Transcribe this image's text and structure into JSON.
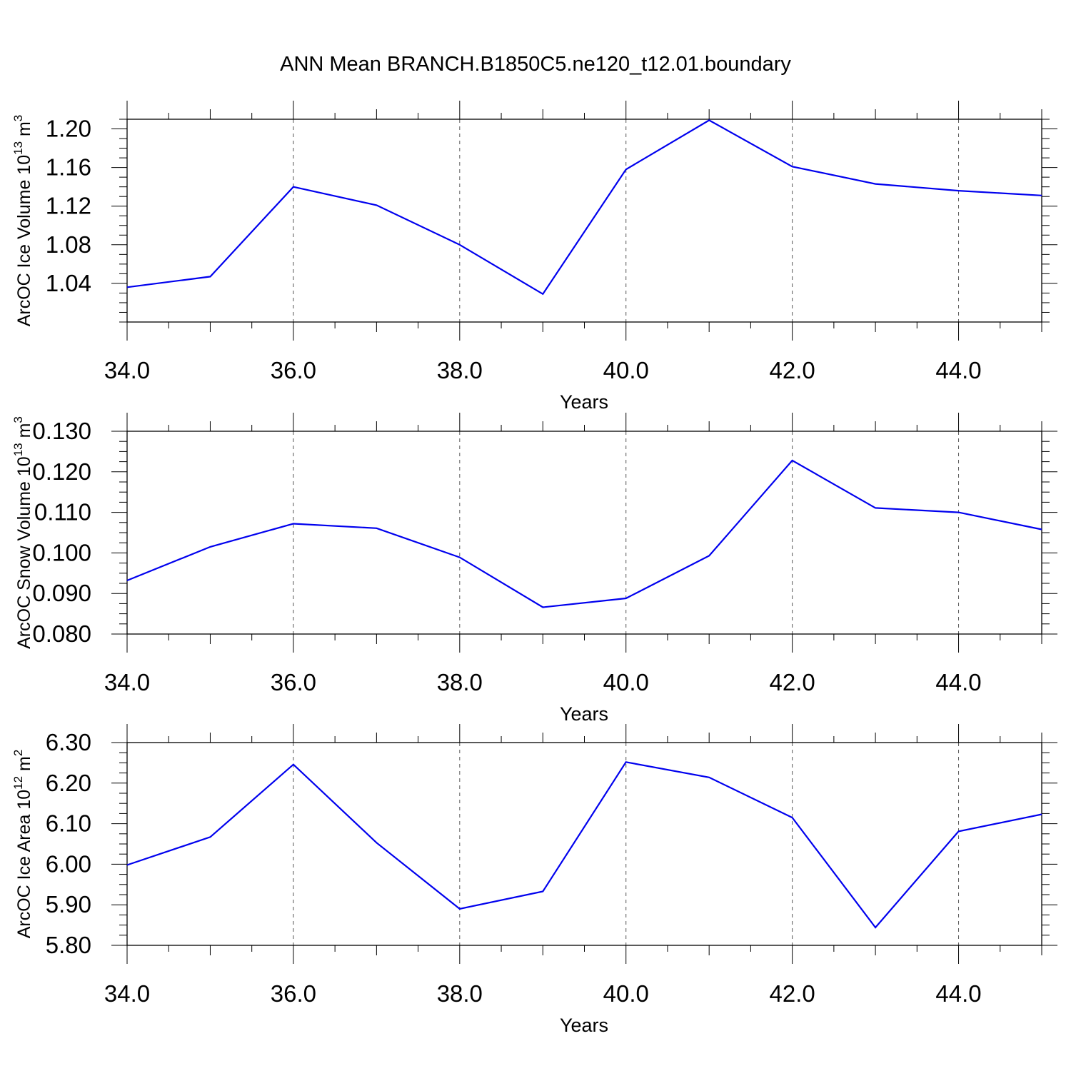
{
  "title": "ANN Mean BRANCH.B1850C5.ne120_t12.01.boundary",
  "colors": {
    "line": "#0000ee",
    "axis": "#000000",
    "grid": "#555555",
    "background": "#ffffff"
  },
  "chart_data": [
    {
      "type": "line",
      "ylabel": {
        "text": "ArcOC Ice Volume 10",
        "sup": "13",
        "unit": " m",
        "unit_sup": "3"
      },
      "xlabel": "Years",
      "xlim": [
        34.0,
        45.0
      ],
      "ylim": [
        1.0,
        1.21
      ],
      "x_ticks": [
        "34.0",
        "36.0",
        "38.0",
        "40.0",
        "42.0",
        "44.0"
      ],
      "y_ticks": [
        "1.04",
        "1.08",
        "1.12",
        "1.16",
        "1.20"
      ],
      "grid": "vertical dashed at major x ticks",
      "x": [
        34,
        35,
        36,
        37,
        38,
        39,
        40,
        41,
        42,
        43,
        44,
        45
      ],
      "y": [
        1.036,
        1.047,
        1.14,
        1.121,
        1.08,
        1.029,
        1.158,
        1.209,
        1.161,
        1.143,
        1.136,
        1.131
      ]
    },
    {
      "type": "line",
      "ylabel": {
        "text": "ArcOC Snow Volume 10",
        "sup": "13",
        "unit": " m",
        "unit_sup": "3"
      },
      "xlabel": "Years",
      "xlim": [
        34.0,
        45.0
      ],
      "ylim": [
        0.08,
        0.13
      ],
      "x_ticks": [
        "34.0",
        "36.0",
        "38.0",
        "40.0",
        "42.0",
        "44.0"
      ],
      "y_ticks": [
        "0.080",
        "0.090",
        "0.100",
        "0.110",
        "0.120",
        "0.130"
      ],
      "grid": "vertical dashed at major x ticks",
      "x": [
        34,
        35,
        36,
        37,
        38,
        39,
        40,
        41,
        42,
        43,
        44,
        45
      ],
      "y": [
        0.0932,
        0.1015,
        0.1072,
        0.1061,
        0.0989,
        0.0866,
        0.0888,
        0.0993,
        0.1228,
        0.1111,
        0.11,
        0.1058
      ]
    },
    {
      "type": "line",
      "ylabel": {
        "text": "ArcOC Ice Area 10",
        "sup": "12",
        "unit": " m",
        "unit_sup": "2"
      },
      "xlabel": "Years",
      "xlim": [
        34.0,
        45.0
      ],
      "ylim": [
        5.8,
        6.3
      ],
      "x_ticks": [
        "34.0",
        "36.0",
        "38.0",
        "40.0",
        "42.0",
        "44.0"
      ],
      "y_ticks": [
        "5.80",
        "5.90",
        "6.00",
        "6.10",
        "6.20",
        "6.30"
      ],
      "grid": "vertical dashed at major x ticks",
      "x": [
        34,
        35,
        36,
        37,
        38,
        39,
        40,
        41,
        42,
        43,
        44,
        45
      ],
      "y": [
        5.998,
        6.067,
        6.246,
        6.053,
        5.89,
        5.933,
        6.252,
        6.214,
        6.115,
        5.844,
        6.081,
        6.123
      ]
    }
  ]
}
